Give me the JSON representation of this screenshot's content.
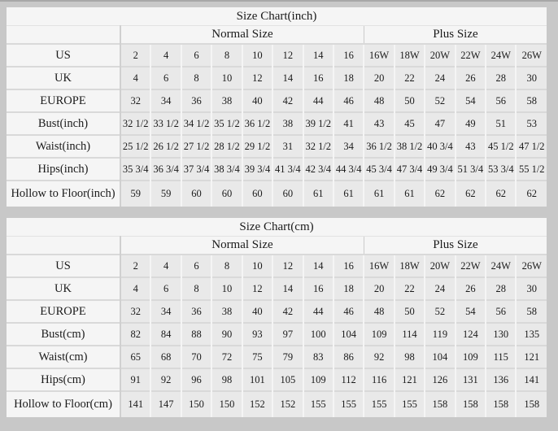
{
  "colors": {
    "page_background": "#c8c8c8",
    "panel_background": "#f5f5f5",
    "data_cell_background": "#e9e9e9",
    "row_separator": "#d9d9d9",
    "text": "#1b1b1b"
  },
  "tables": [
    {
      "title": "Size Chart(inch)",
      "group_headers": [
        "Normal Size",
        "Plus Size"
      ],
      "normal_col_count": 8,
      "plus_col_count": 6,
      "rows": [
        {
          "label": "US",
          "values": [
            "2",
            "4",
            "6",
            "8",
            "10",
            "12",
            "14",
            "16",
            "16W",
            "18W",
            "20W",
            "22W",
            "24W",
            "26W"
          ]
        },
        {
          "label": "UK",
          "values": [
            "4",
            "6",
            "8",
            "10",
            "12",
            "14",
            "16",
            "18",
            "20",
            "22",
            "24",
            "26",
            "28",
            "30"
          ]
        },
        {
          "label": "EUROPE",
          "values": [
            "32",
            "34",
            "36",
            "38",
            "40",
            "42",
            "44",
            "46",
            "48",
            "50",
            "52",
            "54",
            "56",
            "58"
          ]
        },
        {
          "label": "Bust(inch)",
          "values": [
            "32 1/2",
            "33 1/2",
            "34 1/2",
            "35 1/2",
            "36 1/2",
            "38",
            "39 1/2",
            "41",
            "43",
            "45",
            "47",
            "49",
            "51",
            "53"
          ]
        },
        {
          "label": "Waist(inch)",
          "values": [
            "25 1/2",
            "26 1/2",
            "27 1/2",
            "28 1/2",
            "29 1/2",
            "31",
            "32 1/2",
            "34",
            "36 1/2",
            "38 1/2",
            "40 3/4",
            "43",
            "45 1/2",
            "47 1/2"
          ]
        },
        {
          "label": "Hips(inch)",
          "values": [
            "35 3/4",
            "36 3/4",
            "37 3/4",
            "38 3/4",
            "39 3/4",
            "41 3/4",
            "42 3/4",
            "44 3/4",
            "45 3/4",
            "47 3/4",
            "49 3/4",
            "51 3/4",
            "53 3/4",
            "55 1/2"
          ]
        },
        {
          "label": "Hollow to Floor(inch)",
          "values": [
            "59",
            "59",
            "60",
            "60",
            "60",
            "60",
            "61",
            "61",
            "61",
            "61",
            "62",
            "62",
            "62",
            "62"
          ]
        }
      ]
    },
    {
      "title": "Size Chart(cm)",
      "group_headers": [
        "Normal Size",
        "Plus Size"
      ],
      "normal_col_count": 8,
      "plus_col_count": 6,
      "rows": [
        {
          "label": "US",
          "values": [
            "2",
            "4",
            "6",
            "8",
            "10",
            "12",
            "14",
            "16",
            "16W",
            "18W",
            "20W",
            "22W",
            "24W",
            "26W"
          ]
        },
        {
          "label": "UK",
          "values": [
            "4",
            "6",
            "8",
            "10",
            "12",
            "14",
            "16",
            "18",
            "20",
            "22",
            "24",
            "26",
            "28",
            "30"
          ]
        },
        {
          "label": "EUROPE",
          "values": [
            "32",
            "34",
            "36",
            "38",
            "40",
            "42",
            "44",
            "46",
            "48",
            "50",
            "52",
            "54",
            "56",
            "58"
          ]
        },
        {
          "label": "Bust(cm)",
          "values": [
            "82",
            "84",
            "88",
            "90",
            "93",
            "97",
            "100",
            "104",
            "109",
            "114",
            "119",
            "124",
            "130",
            "135"
          ]
        },
        {
          "label": "Waist(cm)",
          "values": [
            "65",
            "68",
            "70",
            "72",
            "75",
            "79",
            "83",
            "86",
            "92",
            "98",
            "104",
            "109",
            "115",
            "121"
          ]
        },
        {
          "label": "Hips(cm)",
          "values": [
            "91",
            "92",
            "96",
            "98",
            "101",
            "105",
            "109",
            "112",
            "116",
            "121",
            "126",
            "131",
            "136",
            "141"
          ]
        },
        {
          "label": "Hollow to Floor(cm)",
          "values": [
            "141",
            "147",
            "150",
            "150",
            "152",
            "152",
            "155",
            "155",
            "155",
            "155",
            "158",
            "158",
            "158",
            "158"
          ]
        }
      ]
    }
  ]
}
